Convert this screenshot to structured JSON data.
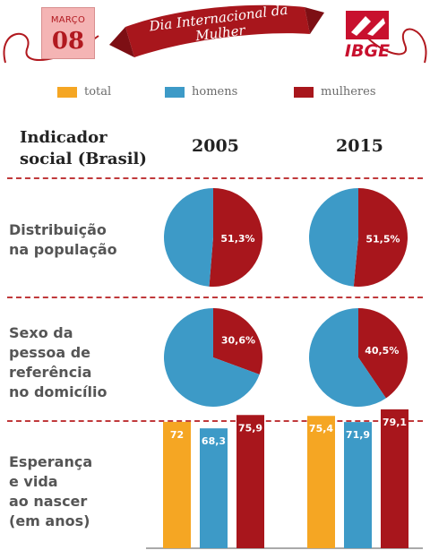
{
  "calendar": {
    "month": "MARÇO",
    "day": "08"
  },
  "banner": {
    "line1": "Dia Internacional da",
    "line2": "Mulher"
  },
  "logo": {
    "name": "IBGE"
  },
  "legend": [
    {
      "label": "total",
      "color": "#f5a623"
    },
    {
      "label": "homens",
      "color": "#3d9ac7"
    },
    {
      "label": "mulheres",
      "color": "#a8161c"
    }
  ],
  "table": {
    "indicator_header_line1": "Indicador",
    "indicator_header_line2": "social (Brasil)",
    "years": [
      "2005",
      "2015"
    ]
  },
  "rows": [
    {
      "label_lines": [
        "Distribuição",
        "na população"
      ]
    },
    {
      "label_lines": [
        "Sexo da",
        "pessoa de",
        "referência",
        "no domicílio"
      ]
    },
    {
      "label_lines": [
        "Esperança",
        "e vida",
        "ao nascer",
        "(em anos)"
      ]
    }
  ],
  "colors": {
    "accent": "#a8161c",
    "men": "#3d9ac7",
    "total": "#f5a623"
  },
  "chart_data": [
    {
      "type": "pie",
      "indicator": "Distribuição na população",
      "year": "2005",
      "slices": [
        {
          "name": "mulheres",
          "value": 51.3,
          "label": "51,3%"
        },
        {
          "name": "homens",
          "value": 48.7,
          "label": ""
        }
      ]
    },
    {
      "type": "pie",
      "indicator": "Distribuição na população",
      "year": "2015",
      "slices": [
        {
          "name": "mulheres",
          "value": 51.5,
          "label": "51,5%"
        },
        {
          "name": "homens",
          "value": 48.5,
          "label": ""
        }
      ]
    },
    {
      "type": "pie",
      "indicator": "Sexo da pessoa de referência no domicílio",
      "year": "2005",
      "slices": [
        {
          "name": "mulheres",
          "value": 30.6,
          "label": "30,6%"
        },
        {
          "name": "homens",
          "value": 69.4,
          "label": ""
        }
      ]
    },
    {
      "type": "pie",
      "indicator": "Sexo da pessoa de referência no domicílio",
      "year": "2015",
      "slices": [
        {
          "name": "mulheres",
          "value": 40.5,
          "label": "40,5%"
        },
        {
          "name": "homens",
          "value": 59.5,
          "label": ""
        }
      ]
    },
    {
      "type": "bar",
      "indicator": "Esperança e vida ao nascer (em anos)",
      "categories": [
        "2005",
        "2015"
      ],
      "series": [
        {
          "name": "total",
          "values": [
            72,
            75.4
          ],
          "labels": [
            "72",
            "75,4"
          ]
        },
        {
          "name": "homens",
          "values": [
            68.3,
            71.9
          ],
          "labels": [
            "68,3",
            "71,9"
          ]
        },
        {
          "name": "mulheres",
          "values": [
            75.9,
            79.1
          ],
          "labels": [
            "75,9",
            "79,1"
          ]
        }
      ],
      "ylim": [
        0,
        100
      ]
    }
  ]
}
